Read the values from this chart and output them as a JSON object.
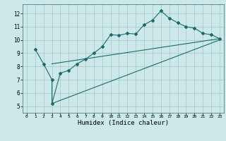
{
  "xlabel": "Humidex (Indice chaleur)",
  "bg_color": "#cce8e8",
  "line_color": "#1a6b6b",
  "grid_color": "#aacccc",
  "xlim": [
    -0.5,
    23.5
  ],
  "ylim": [
    4.5,
    12.7
  ],
  "xticks": [
    0,
    1,
    2,
    3,
    4,
    5,
    6,
    7,
    8,
    9,
    10,
    11,
    12,
    13,
    14,
    15,
    16,
    17,
    18,
    19,
    20,
    21,
    22,
    23
  ],
  "yticks": [
    5,
    6,
    7,
    8,
    9,
    10,
    11,
    12
  ],
  "curve_x": [
    1,
    2,
    3,
    3,
    4,
    5,
    6,
    7,
    8,
    9,
    10,
    11,
    12,
    13,
    14,
    15,
    16,
    17,
    18,
    19,
    20,
    21,
    22,
    23
  ],
  "curve_y": [
    9.3,
    8.2,
    7.0,
    5.2,
    7.5,
    7.7,
    8.2,
    8.55,
    9.0,
    9.5,
    10.4,
    10.35,
    10.5,
    10.45,
    11.15,
    11.5,
    12.2,
    11.65,
    11.3,
    11.0,
    10.9,
    10.5,
    10.4,
    10.1
  ],
  "upper_line_x": [
    3,
    23
  ],
  "upper_line_y": [
    8.2,
    10.1
  ],
  "lower_line_x": [
    3,
    23
  ],
  "lower_line_y": [
    5.2,
    10.0
  ]
}
